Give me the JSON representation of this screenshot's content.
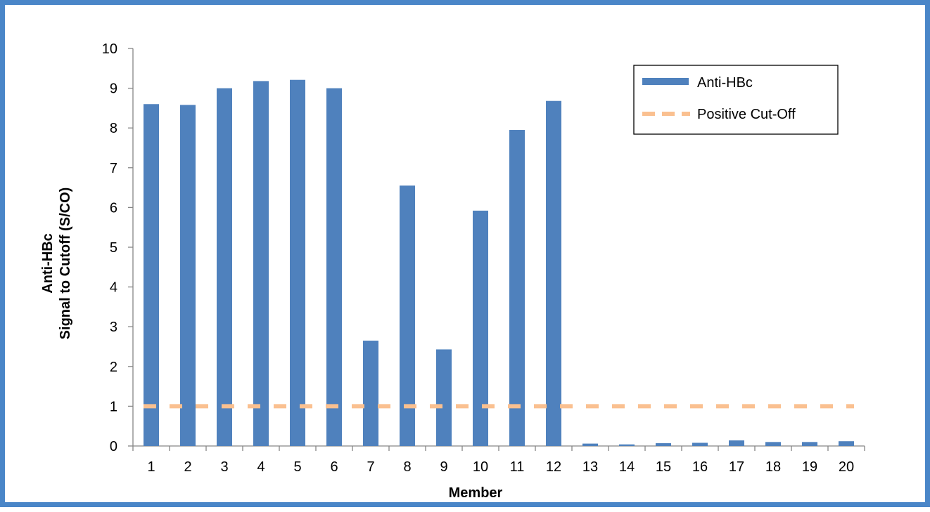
{
  "chart_data": {
    "type": "bar",
    "title": "",
    "xlabel": "Member",
    "ylabel_line1": "Anti-HBc",
    "ylabel_line2": "Signal to Cutoff (S/CO)",
    "categories": [
      "1",
      "2",
      "3",
      "4",
      "5",
      "6",
      "7",
      "8",
      "9",
      "10",
      "11",
      "12",
      "13",
      "14",
      "15",
      "16",
      "17",
      "18",
      "19",
      "20"
    ],
    "series": [
      {
        "name": "Anti-HBc",
        "type": "bar",
        "color": "#4f81bd",
        "values": [
          8.6,
          8.58,
          9.0,
          9.18,
          9.21,
          9.0,
          2.65,
          6.55,
          2.43,
          5.92,
          7.95,
          8.68,
          0.06,
          0.04,
          0.07,
          0.08,
          0.14,
          0.1,
          0.1,
          0.12
        ]
      },
      {
        "name": "Positive Cut-Off",
        "type": "line",
        "style": "dashed",
        "color": "#fac090",
        "value": 1
      }
    ],
    "ylim": [
      0,
      10
    ],
    "yticks": [
      "0",
      "1",
      "2",
      "3",
      "4",
      "5",
      "6",
      "7",
      "8",
      "9",
      "10"
    ],
    "grid": false,
    "legend_position": "top-right"
  }
}
